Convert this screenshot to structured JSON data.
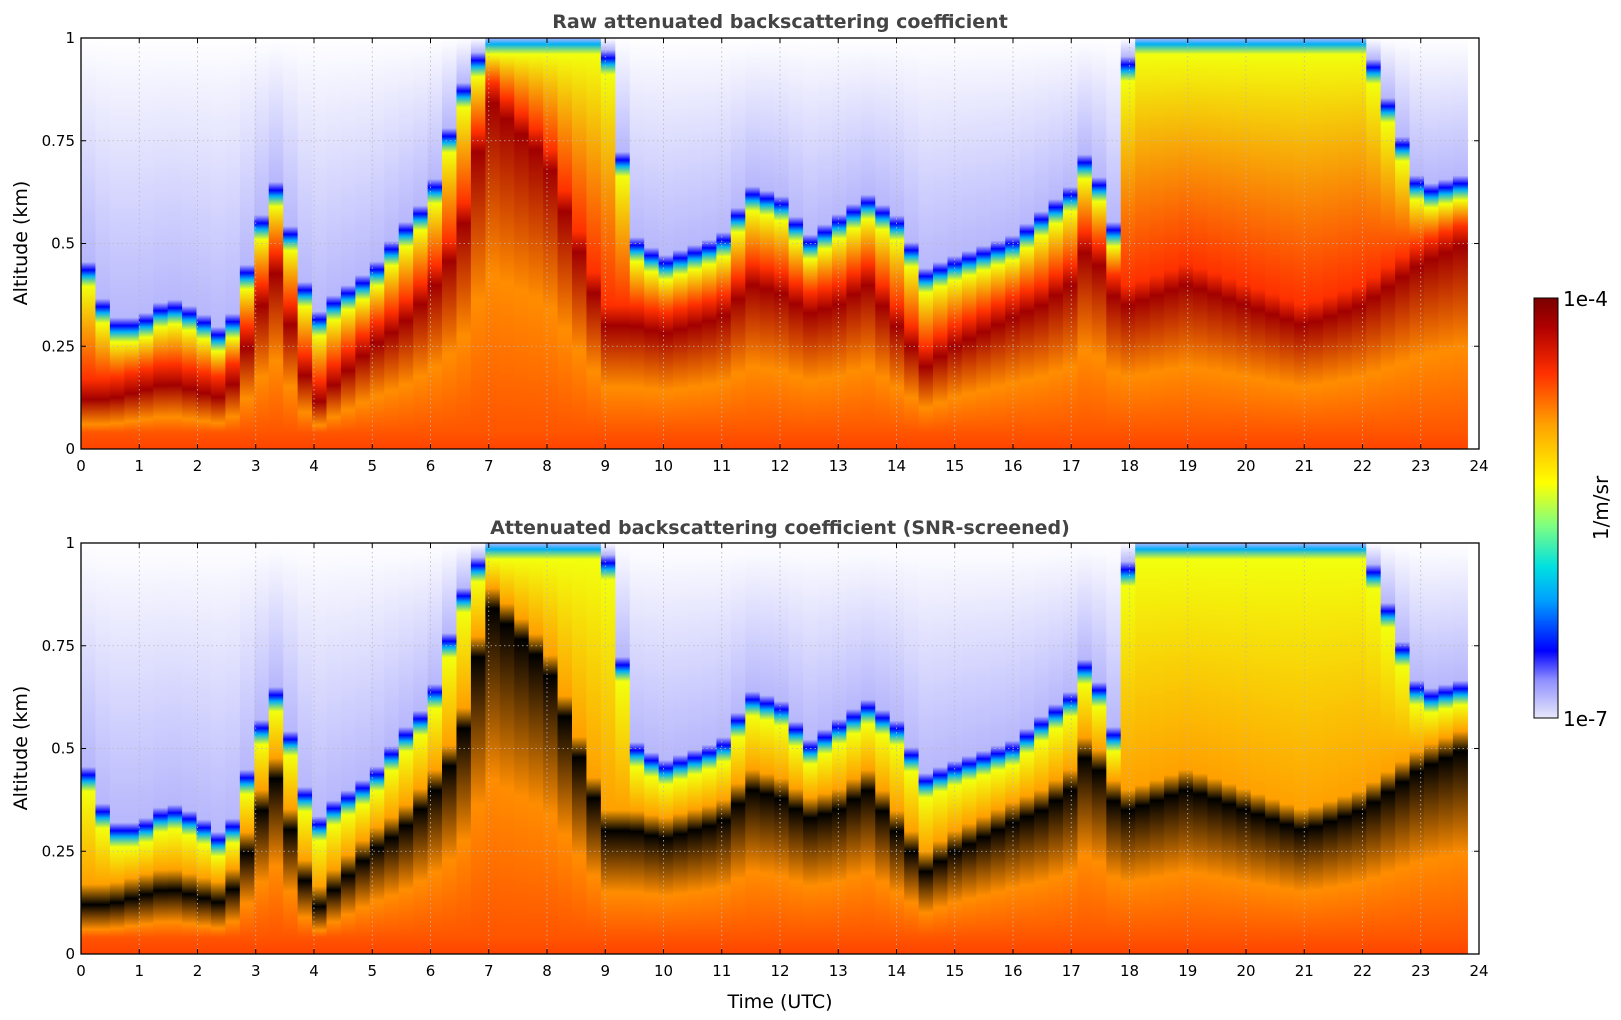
{
  "chart_data": [
    {
      "type": "heatmap",
      "title": "Raw attenuated backscattering coefficient",
      "xlabel": "",
      "ylabel": "Altitude (km)",
      "xlim": [
        0,
        24
      ],
      "ylim": [
        0,
        1
      ],
      "x_ticks": [
        "0",
        "1",
        "2",
        "3",
        "4",
        "5",
        "6",
        "7",
        "8",
        "9",
        "10",
        "11",
        "12",
        "13",
        "14",
        "15",
        "16",
        "17",
        "18",
        "19",
        "20",
        "21",
        "22",
        "23",
        "24"
      ],
      "y_ticks": [
        "0",
        "0.25",
        "0.5",
        "0.75",
        "1"
      ],
      "grid": true,
      "data_end_time": 23.8,
      "layer_top_km": {
        "x": [
          0,
          0.5,
          1,
          1.5,
          2,
          2.5,
          3,
          3.3,
          3.6,
          4,
          4.3,
          5,
          5.5,
          6,
          6.5,
          7,
          8,
          9,
          9.5,
          10,
          11,
          11.5,
          12,
          12.5,
          13,
          13.5,
          14,
          14.5,
          15,
          16,
          16.5,
          17,
          17.3,
          17.8,
          18,
          19,
          20,
          21,
          22,
          23,
          23.8
        ],
        "values": [
          0.48,
          0.3,
          0.3,
          0.35,
          0.32,
          0.26,
          0.5,
          0.65,
          0.52,
          0.3,
          0.35,
          0.42,
          0.52,
          0.6,
          0.85,
          1.0,
          1.0,
          1.0,
          0.5,
          0.45,
          0.5,
          0.62,
          0.6,
          0.5,
          0.55,
          0.6,
          0.55,
          0.42,
          0.45,
          0.5,
          0.56,
          0.62,
          0.72,
          0.5,
          1.0,
          1.0,
          1.0,
          1.0,
          1.0,
          0.62,
          0.65
        ]
      },
      "peak_layer_km": {
        "x": [
          0,
          0.5,
          1,
          1.5,
          2,
          2.5,
          3,
          3.3,
          3.6,
          4,
          4.3,
          5,
          5.5,
          6,
          6.5,
          7,
          8,
          9,
          9.5,
          10,
          11,
          11.5,
          12,
          12.5,
          13,
          13.5,
          14,
          14.5,
          15,
          16,
          16.5,
          17,
          17.3,
          17.8,
          18,
          19,
          20,
          21,
          22,
          23,
          23.8
        ],
        "values": [
          0.12,
          0.12,
          0.14,
          0.16,
          0.14,
          0.12,
          0.3,
          0.45,
          0.3,
          0.1,
          0.15,
          0.25,
          0.3,
          0.38,
          0.5,
          0.85,
          0.7,
          0.3,
          0.3,
          0.28,
          0.32,
          0.4,
          0.38,
          0.33,
          0.35,
          0.4,
          0.3,
          0.2,
          0.25,
          0.32,
          0.35,
          0.4,
          0.5,
          0.35,
          0.35,
          0.4,
          0.35,
          0.3,
          0.35,
          0.45,
          0.5
        ]
      }
    },
    {
      "type": "heatmap",
      "title": "Attenuated backscattering coefficient (SNR-screened)",
      "xlabel": "Time (UTC)",
      "ylabel": "Altitude (km)",
      "xlim": [
        0,
        24
      ],
      "ylim": [
        0,
        1
      ],
      "x_ticks": [
        "0",
        "1",
        "2",
        "3",
        "4",
        "5",
        "6",
        "7",
        "8",
        "9",
        "10",
        "11",
        "12",
        "13",
        "14",
        "15",
        "16",
        "17",
        "18",
        "19",
        "20",
        "21",
        "22",
        "23",
        "24"
      ],
      "y_ticks": [
        "0",
        "0.25",
        "0.5",
        "0.75",
        "1"
      ],
      "grid": true,
      "data_end_time": 23.8,
      "screened_color": "#000000"
    }
  ],
  "colorbar": {
    "label": "1/m/sr",
    "max_label": "1e-4",
    "min_label": "1e-7",
    "scale": "log",
    "colors": [
      "#e8e8fa",
      "#0000ff",
      "#00a0ff",
      "#00e0e0",
      "#80ff80",
      "#ffff00",
      "#ffa000",
      "#ff3000",
      "#a00000",
      "#7a0000"
    ]
  }
}
